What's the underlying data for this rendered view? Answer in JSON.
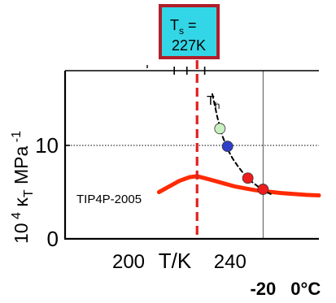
{
  "chart_data": {
    "type": "line",
    "xlabel": "T/K",
    "ylabel": "10 4 κT MPa -1",
    "ylabel_parts": {
      "base": "10",
      "exp": "4",
      "kappa": "κ",
      "sub": "T",
      "unit": "MPa",
      "unit_exp": "-1"
    },
    "xlim": [
      175,
      275
    ],
    "ylim": [
      0,
      18
    ],
    "x_ticks": [
      {
        "value": 200,
        "label": "200"
      },
      {
        "value": 240,
        "label": "240"
      }
    ],
    "x_top_ticks": [
      218,
      223,
      230
    ],
    "secondary_x_ticks": [
      {
        "value": 253,
        "label": "-20"
      },
      {
        "value": 273,
        "label": "0°C"
      }
    ],
    "y_ticks": [
      {
        "value": 10,
        "label": "10"
      },
      {
        "value": 0,
        "label": "0"
      }
    ],
    "reference_lines": [
      {
        "axis": "y",
        "value": 10,
        "style": "dotted"
      },
      {
        "axis": "x",
        "value": 253,
        "style": "solid-thin"
      }
    ],
    "ts_line": {
      "x": 227,
      "color": "#e02020"
    },
    "callout": {
      "line1": "T",
      "line1_sub": "s",
      "line1_suffix": " =",
      "line2": "227K",
      "fill": "#33d6e6",
      "border": "#b01e2a"
    },
    "series": [
      {
        "name": "TIP4P-2005",
        "color": "#ff2a00",
        "style": "thick",
        "x": [
          212,
          216,
          220,
          224,
          227,
          230,
          234,
          238,
          242,
          246,
          250,
          255,
          260,
          265,
          270,
          275
        ],
        "y": [
          5.0,
          5.6,
          6.2,
          6.6,
          6.7,
          6.5,
          6.2,
          5.9,
          5.6,
          5.4,
          5.2,
          5.05,
          4.9,
          4.8,
          4.7,
          4.65
        ]
      },
      {
        "name": "Th",
        "name_parts": {
          "base": "T",
          "sub": "h"
        },
        "color": "#000000",
        "style": "dashed",
        "x": [
          233,
          235,
          237,
          239,
          241,
          243,
          245,
          247,
          249,
          252,
          254,
          256
        ],
        "y": [
          15.5,
          13.0,
          11.0,
          9.6,
          8.6,
          7.8,
          7.1,
          6.5,
          6.0,
          5.4,
          5.05,
          4.8
        ]
      }
    ],
    "points": [
      {
        "x": 236,
        "y": 11.8,
        "color": "#c9f0c0"
      },
      {
        "x": 239,
        "y": 9.9,
        "color": "#2f3fc8"
      },
      {
        "x": 247,
        "y": 6.5,
        "color": "#ee1c1c"
      },
      {
        "x": 253,
        "y": 5.3,
        "color": "#ee1c1c"
      }
    ],
    "grid": false
  }
}
